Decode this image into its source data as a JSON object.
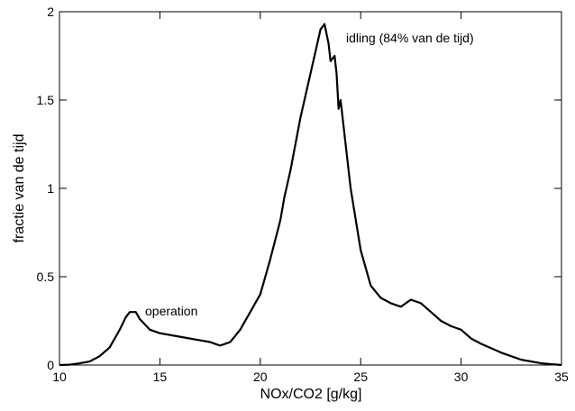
{
  "chart_data": {
    "type": "line",
    "xlabel": "NOx/CO2 [g/kg]",
    "ylabel": "fractie van de tijd",
    "annotations": [
      "operation",
      "idling (84% van de tijd)"
    ],
    "x": [
      10,
      10.5,
      11,
      11.5,
      12,
      12.5,
      13,
      13.3,
      13.5,
      13.8,
      14,
      14.5,
      15,
      16,
      17,
      17.5,
      18,
      18.5,
      19,
      19.5,
      20,
      20.5,
      21,
      21.2,
      21.5,
      22,
      22.5,
      22.8,
      23,
      23.2,
      23.4,
      23.5,
      23.7,
      23.8,
      23.9,
      24,
      24.2,
      24.5,
      25,
      25.5,
      26,
      26.5,
      27,
      27.5,
      28,
      28.5,
      29,
      29.5,
      30,
      30.5,
      31,
      32,
      33,
      34,
      35
    ],
    "series": [
      {
        "color": "#000000",
        "values": [
          0,
          0.002,
          0.01,
          0.02,
          0.05,
          0.1,
          0.2,
          0.27,
          0.3,
          0.3,
          0.26,
          0.2,
          0.18,
          0.16,
          0.14,
          0.13,
          0.11,
          0.13,
          0.2,
          0.3,
          0.4,
          0.6,
          0.82,
          0.95,
          1.1,
          1.4,
          1.65,
          1.8,
          1.9,
          1.93,
          1.82,
          1.72,
          1.75,
          1.65,
          1.45,
          1.5,
          1.3,
          1.0,
          0.65,
          0.45,
          0.38,
          0.35,
          0.33,
          0.37,
          0.35,
          0.3,
          0.25,
          0.22,
          0.2,
          0.15,
          0.12,
          0.07,
          0.03,
          0.01,
          0
        ]
      }
    ],
    "xlim": [
      10,
      35
    ],
    "ylim": [
      0,
      2
    ],
    "xticks": [
      10,
      15,
      20,
      25,
      30,
      35
    ],
    "yticks": [
      0,
      0.5,
      1,
      1.5,
      2
    ],
    "grid": false
  }
}
